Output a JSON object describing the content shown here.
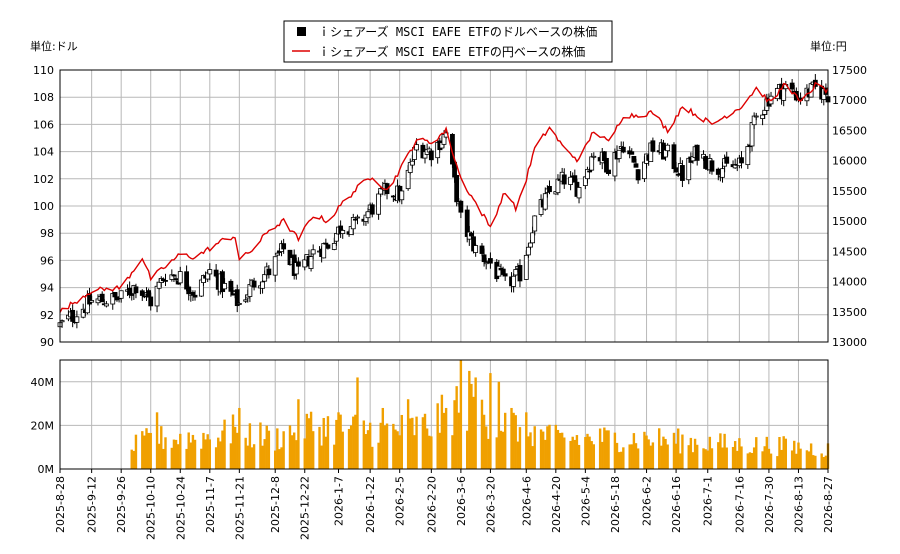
{
  "chart_data": [
    {
      "type": "candlestick+line",
      "legend": [
        {
          "label": "ｉシェアーズ MSCI EAFE ETFのドルベースの株価",
          "marker": "square",
          "color": "#000000"
        },
        {
          "label": "ｉシェアーズ MSCI EAFE ETFの円ベースの株価",
          "marker": "line",
          "color": "#dd0000"
        }
      ],
      "left_unit": "単位:ドル",
      "right_unit": "単位:円",
      "ylim_left": [
        90,
        110
      ],
      "yticks_left": [
        90,
        92,
        94,
        96,
        98,
        100,
        102,
        104,
        106,
        108,
        110
      ],
      "ylim_right": [
        13000,
        17500
      ],
      "yticks_right": [
        13000,
        13500,
        14000,
        14500,
        15000,
        15500,
        16000,
        16500,
        17000,
        17500
      ],
      "grid": true,
      "ohlc_keypoints_usd": [
        [
          "2025-08-28",
          91.2
        ],
        [
          "2025-09-12",
          93.0
        ],
        [
          "2025-09-26",
          93.2
        ],
        [
          "2025-10-03",
          94.2
        ],
        [
          "2025-10-10",
          93.0
        ],
        [
          "2025-10-17",
          95.0
        ],
        [
          "2025-10-24",
          94.8
        ],
        [
          "2025-10-31",
          93.6
        ],
        [
          "2025-11-07",
          95.2
        ],
        [
          "2025-11-14",
          94.0
        ],
        [
          "2025-11-21",
          92.8
        ],
        [
          "2025-11-28",
          94.4
        ],
        [
          "2025-12-05",
          95.2
        ],
        [
          "2025-12-12",
          96.8
        ],
        [
          "2025-12-19",
          94.9
        ],
        [
          "2025-12-26",
          96.6
        ],
        [
          "2026-01-02",
          97.2
        ],
        [
          "2026-01-09",
          98.6
        ],
        [
          "2026-01-16",
          98.6
        ],
        [
          "2026-01-23",
          99.9
        ],
        [
          "2026-01-30",
          101.2
        ],
        [
          "2026-02-06",
          100.8
        ],
        [
          "2026-02-13",
          104.4
        ],
        [
          "2026-02-20",
          104.0
        ],
        [
          "2026-02-27",
          105.3
        ],
        [
          "2026-03-06",
          99.0
        ],
        [
          "2026-03-13",
          96.8
        ],
        [
          "2026-03-20",
          95.8
        ],
        [
          "2026-03-27",
          94.2
        ],
        [
          "2026-04-03",
          95.0
        ],
        [
          "2026-04-10",
          99.0
        ],
        [
          "2026-04-17",
          101.0
        ],
        [
          "2026-04-24",
          102.0
        ],
        [
          "2026-05-01",
          101.3
        ],
        [
          "2026-05-08",
          104.0
        ],
        [
          "2026-05-15",
          103.0
        ],
        [
          "2026-05-22",
          104.6
        ],
        [
          "2026-05-29",
          102.6
        ],
        [
          "2026-06-05",
          104.3
        ],
        [
          "2026-06-12",
          103.8
        ],
        [
          "2026-06-19",
          102.3
        ],
        [
          "2026-06-26",
          104.0
        ],
        [
          "2026-07-03",
          103.0
        ],
        [
          "2026-07-10",
          102.8
        ],
        [
          "2026-07-17",
          103.0
        ],
        [
          "2026-07-24",
          106.5
        ],
        [
          "2026-07-31",
          108.2
        ],
        [
          "2026-08-07",
          108.7
        ],
        [
          "2026-08-14",
          108.0
        ],
        [
          "2026-08-21",
          108.6
        ],
        [
          "2026-08-27",
          108.2
        ]
      ],
      "close_jpy": [
        [
          "2025-08-28",
          13500
        ],
        [
          "2025-09-12",
          13850
        ],
        [
          "2025-09-26",
          13900
        ],
        [
          "2025-10-06",
          14400
        ],
        [
          "2025-10-10",
          14050
        ],
        [
          "2025-10-17",
          14250
        ],
        [
          "2025-10-24",
          14450
        ],
        [
          "2025-10-31",
          14400
        ],
        [
          "2025-11-07",
          14550
        ],
        [
          "2025-11-14",
          14700
        ],
        [
          "2025-11-19",
          14750
        ],
        [
          "2025-11-21",
          14350
        ],
        [
          "2025-11-28",
          14550
        ],
        [
          "2025-12-05",
          14850
        ],
        [
          "2025-12-12",
          15000
        ],
        [
          "2025-12-19",
          14700
        ],
        [
          "2025-12-26",
          15100
        ],
        [
          "2026-01-02",
          15000
        ],
        [
          "2026-01-09",
          15300
        ],
        [
          "2026-01-16",
          15550
        ],
        [
          "2026-01-23",
          15750
        ],
        [
          "2026-01-30",
          15500
        ],
        [
          "2026-02-06",
          15900
        ],
        [
          "2026-02-13",
          16350
        ],
        [
          "2026-02-20",
          16300
        ],
        [
          "2026-02-27",
          16500
        ],
        [
          "2026-03-06",
          15700
        ],
        [
          "2026-03-13",
          15300
        ],
        [
          "2026-03-20",
          14900
        ],
        [
          "2026-03-27",
          15500
        ],
        [
          "2026-04-01",
          15200
        ],
        [
          "2026-04-06",
          15700
        ],
        [
          "2026-04-10",
          16200
        ],
        [
          "2026-04-17",
          16550
        ],
        [
          "2026-04-24",
          16200
        ],
        [
          "2026-05-01",
          16000
        ],
        [
          "2026-05-08",
          16500
        ],
        [
          "2026-05-15",
          16300
        ],
        [
          "2026-05-22",
          16750
        ],
        [
          "2026-05-29",
          16750
        ],
        [
          "2026-06-05",
          16800
        ],
        [
          "2026-06-12",
          16500
        ],
        [
          "2026-06-19",
          16900
        ],
        [
          "2026-06-26",
          16750
        ],
        [
          "2026-07-03",
          16600
        ],
        [
          "2026-07-10",
          16750
        ],
        [
          "2026-07-17",
          16900
        ],
        [
          "2026-07-24",
          17200
        ],
        [
          "2026-07-31",
          16950
        ],
        [
          "2026-08-07",
          17300
        ],
        [
          "2026-08-14",
          16950
        ],
        [
          "2026-08-21",
          17250
        ],
        [
          "2026-08-27",
          17150
        ]
      ]
    },
    {
      "type": "bar",
      "title": "",
      "ylim": [
        0,
        50000000
      ],
      "yticks": [
        0,
        20000000,
        40000000
      ],
      "ytick_labels": [
        "0M",
        "20M",
        "40M"
      ],
      "bar_color": "#f0a000",
      "x_tick_labels": [
        "2025-8-28",
        "2025-9-12",
        "2025-9-26",
        "2025-10-10",
        "2025-10-24",
        "2025-11-7",
        "2025-11-21",
        "2025-12-8",
        "2025-12-22",
        "2026-1-7",
        "2026-1-22",
        "2026-2-5",
        "2026-2-20",
        "2026-3-6",
        "2026-3-20",
        "2026-4-6",
        "2026-4-20",
        "2026-5-4",
        "2026-5-18",
        "2026-6-2",
        "2026-6-16",
        "2026-7-1",
        "2026-7-16",
        "2026-7-30",
        "2026-8-13",
        "2026-8-27"
      ],
      "volume_keypoints": [
        [
          "2025-09-30",
          0
        ],
        [
          "2025-10-01",
          10000000
        ],
        [
          "2025-10-10",
          14000000
        ],
        [
          "2025-10-24",
          14000000
        ],
        [
          "2025-11-07",
          15000000
        ],
        [
          "2025-11-21",
          17000000
        ],
        [
          "2025-12-08",
          14000000
        ],
        [
          "2025-12-22",
          20000000
        ],
        [
          "2026-01-07",
          19000000
        ],
        [
          "2026-01-22",
          18000000
        ],
        [
          "2026-02-05",
          18000000
        ],
        [
          "2026-02-20",
          20000000
        ],
        [
          "2026-03-06",
          30000000
        ],
        [
          "2026-03-20",
          24000000
        ],
        [
          "2026-04-06",
          18000000
        ],
        [
          "2026-04-20",
          14000000
        ],
        [
          "2026-05-04",
          14000000
        ],
        [
          "2026-05-18",
          14000000
        ],
        [
          "2026-06-02",
          14000000
        ],
        [
          "2026-06-16",
          13000000
        ],
        [
          "2026-07-01",
          12000000
        ],
        [
          "2026-07-16",
          11000000
        ],
        [
          "2026-07-30",
          11000000
        ],
        [
          "2026-08-13",
          10000000
        ],
        [
          "2026-08-27",
          9000000
        ]
      ],
      "volume_spikes": [
        [
          "2025-10-13",
          26000000
        ],
        [
          "2025-11-18",
          25000000
        ],
        [
          "2025-11-21",
          28000000
        ],
        [
          "2025-12-19",
          32000000
        ],
        [
          "2026-01-07",
          26000000
        ],
        [
          "2026-01-16",
          42000000
        ],
        [
          "2026-01-28",
          28000000
        ],
        [
          "2026-02-09",
          32000000
        ],
        [
          "2026-02-27",
          28000000
        ],
        [
          "2026-03-04",
          38000000
        ],
        [
          "2026-03-06",
          52000000
        ],
        [
          "2026-03-10",
          45000000
        ],
        [
          "2026-03-13",
          42000000
        ],
        [
          "2026-03-20",
          44000000
        ],
        [
          "2026-03-24",
          40000000
        ],
        [
          "2026-03-30",
          28000000
        ],
        [
          "2026-04-06",
          26000000
        ]
      ]
    }
  ]
}
